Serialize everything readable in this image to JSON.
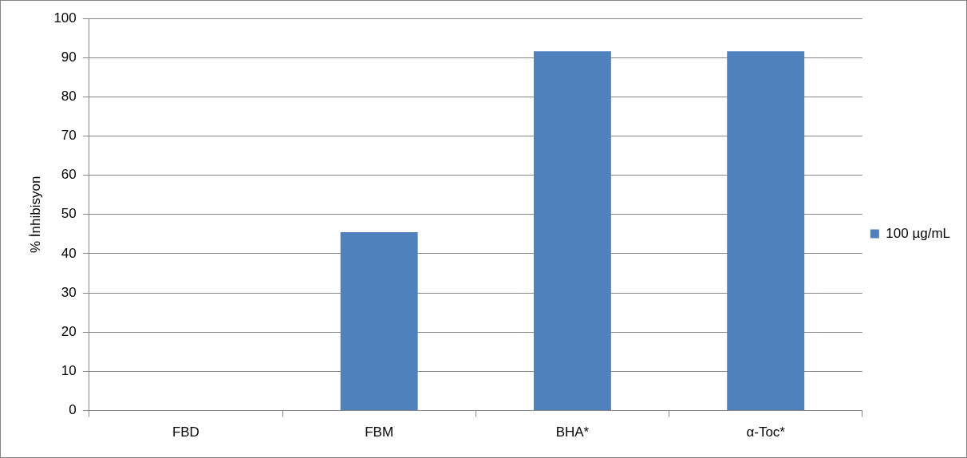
{
  "chart_data": {
    "type": "bar",
    "ylabel": "% İnhibisyon",
    "categories": [
      "FBD",
      "FBM",
      "BHA*",
      "α-Toc*"
    ],
    "series": [
      {
        "name": "100 µg/mL",
        "color": "#4f81bd",
        "values": [
          0,
          45.5,
          91.6,
          91.6
        ]
      }
    ],
    "ylim": [
      0,
      100
    ],
    "yticks": [
      0,
      10,
      20,
      30,
      40,
      50,
      60,
      70,
      80,
      90,
      100
    ],
    "grid": "y",
    "legend": "right"
  }
}
